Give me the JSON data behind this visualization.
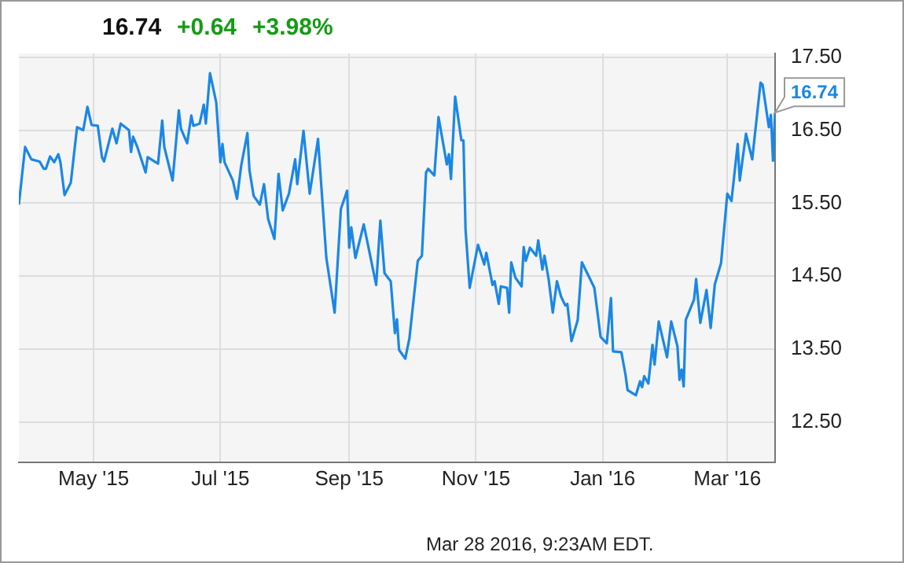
{
  "chart_data": {
    "type": "line",
    "x": [
      "2015-03-26",
      "2015-03-29",
      "2015-04-01",
      "2015-04-05",
      "2015-04-07",
      "2015-04-08",
      "2015-04-10",
      "2015-04-12",
      "2015-04-14",
      "2015-04-15",
      "2015-04-17",
      "2015-04-20",
      "2015-04-23",
      "2015-04-26",
      "2015-04-28",
      "2015-04-30",
      "2015-05-03",
      "2015-05-05",
      "2015-05-06",
      "2015-05-10",
      "2015-05-12",
      "2015-05-14",
      "2015-05-18",
      "2015-05-19",
      "2015-05-20",
      "2015-05-22",
      "2015-05-26",
      "2015-05-27",
      "2015-06-01",
      "2015-06-03",
      "2015-06-04",
      "2015-06-08",
      "2015-06-11",
      "2015-06-12",
      "2015-06-15",
      "2015-06-17",
      "2015-06-18",
      "2015-06-21",
      "2015-06-23",
      "2015-06-24",
      "2015-06-26",
      "2015-06-29",
      "2015-07-01",
      "2015-07-02",
      "2015-07-03",
      "2015-07-07",
      "2015-07-09",
      "2015-07-11",
      "2015-07-14",
      "2015-07-15",
      "2015-07-17",
      "2015-07-20",
      "2015-07-22",
      "2015-07-24",
      "2015-07-27",
      "2015-07-29",
      "2015-07-31",
      "2015-08-03",
      "2015-08-06",
      "2015-08-07",
      "2015-08-10",
      "2015-08-13",
      "2015-08-17",
      "2015-08-21",
      "2015-08-25",
      "2015-08-28",
      "2015-08-31",
      "2015-09-01",
      "2015-09-02",
      "2015-09-04",
      "2015-09-08",
      "2015-09-14",
      "2015-09-16",
      "2015-09-18",
      "2015-09-21",
      "2015-09-23",
      "2015-09-24",
      "2015-09-25",
      "2015-09-28",
      "2015-09-30",
      "2015-10-04",
      "2015-10-06",
      "2015-10-08",
      "2015-10-09",
      "2015-10-12",
      "2015-10-14",
      "2015-10-18",
      "2015-10-19",
      "2015-10-20",
      "2015-10-22",
      "2015-10-25",
      "2015-10-26",
      "2015-10-27",
      "2015-10-29",
      "2015-11-02",
      "2015-11-05",
      "2015-11-06",
      "2015-11-09",
      "2015-11-10",
      "2015-11-12",
      "2015-11-13",
      "2015-11-16",
      "2015-11-17",
      "2015-11-18",
      "2015-11-20",
      "2015-11-23",
      "2015-11-24",
      "2015-11-25",
      "2015-11-27",
      "2015-11-30",
      "2015-12-01",
      "2015-12-03",
      "2015-12-04",
      "2015-12-06",
      "2015-12-08",
      "2015-12-10",
      "2015-12-12",
      "2015-12-14",
      "2015-12-15",
      "2015-12-17",
      "2015-12-20",
      "2015-12-22",
      "2015-12-28",
      "2015-12-31",
      "2016-01-03",
      "2016-01-05",
      "2016-01-06",
      "2016-01-10",
      "2016-01-12",
      "2016-01-13",
      "2016-01-17",
      "2016-01-19",
      "2016-01-20",
      "2016-01-21",
      "2016-01-23",
      "2016-01-25",
      "2016-01-26",
      "2016-01-28",
      "2016-02-01",
      "2016-02-03",
      "2016-02-06",
      "2016-02-07",
      "2016-02-08",
      "2016-02-09",
      "2016-02-10",
      "2016-02-14",
      "2016-02-15",
      "2016-02-17",
      "2016-02-20",
      "2016-02-22",
      "2016-02-24",
      "2016-02-27",
      "2016-03-01",
      "2016-03-03",
      "2016-03-06",
      "2016-03-07",
      "2016-03-10",
      "2016-03-13",
      "2016-03-17",
      "2016-03-18",
      "2016-03-21",
      "2016-03-22",
      "2016-03-23",
      "2016-03-24"
    ],
    "values": [
      15.48,
      16.27,
      16.1,
      16.07,
      15.97,
      15.97,
      16.14,
      16.06,
      16.17,
      16.06,
      15.61,
      15.78,
      16.54,
      16.5,
      16.82,
      16.57,
      16.56,
      16.13,
      16.07,
      16.52,
      16.32,
      16.59,
      16.5,
      16.2,
      16.41,
      16.27,
      15.92,
      16.13,
      16.04,
      16.63,
      16.27,
      15.81,
      16.77,
      16.52,
      16.32,
      16.7,
      16.56,
      16.59,
      16.85,
      16.59,
      17.28,
      16.88,
      16.06,
      16.31,
      16.06,
      15.81,
      15.56,
      16.01,
      16.46,
      15.95,
      15.6,
      15.48,
      15.76,
      15.28,
      15.01,
      15.9,
      15.4,
      15.63,
      16.1,
      15.76,
      16.49,
      15.63,
      16.38,
      14.75,
      14.0,
      15.42,
      15.67,
      14.89,
      15.17,
      14.75,
      15.21,
      14.38,
      15.26,
      14.54,
      14.43,
      13.72,
      13.91,
      13.49,
      13.37,
      13.65,
      14.71,
      14.78,
      15.92,
      15.97,
      15.88,
      16.68,
      16.03,
      16.17,
      15.83,
      16.96,
      16.36,
      16.36,
      15.14,
      14.34,
      14.93,
      14.66,
      14.82,
      14.38,
      14.43,
      14.12,
      14.36,
      14.34,
      14.0,
      14.69,
      14.48,
      14.36,
      14.9,
      14.71,
      14.89,
      14.78,
      14.99,
      14.59,
      14.78,
      14.46,
      14.0,
      14.43,
      14.22,
      14.1,
      14.12,
      13.61,
      13.9,
      14.69,
      14.34,
      13.67,
      13.58,
      14.2,
      13.47,
      13.46,
      13.15,
      12.94,
      12.87,
      13.06,
      12.98,
      13.13,
      13.03,
      13.56,
      13.29,
      13.88,
      13.39,
      13.88,
      13.54,
      13.08,
      13.22,
      12.99,
      13.9,
      14.18,
      14.46,
      13.86,
      14.31,
      13.79,
      14.39,
      14.68,
      15.63,
      15.53,
      16.31,
      15.81,
      16.45,
      16.1,
      17.15,
      17.12,
      16.54,
      16.71,
      16.08,
      16.74
    ],
    "color": "#1a87e6",
    "xlim": [
      "2015-03-26",
      "2016-03-24"
    ],
    "xticks": [
      {
        "value": "2015-05-01",
        "label": "May '15"
      },
      {
        "value": "2015-07-01",
        "label": "Jul '15"
      },
      {
        "value": "2015-09-01",
        "label": "Sep '15"
      },
      {
        "value": "2015-11-01",
        "label": "Nov '15"
      },
      {
        "value": "2016-01-01",
        "label": "Jan '16"
      },
      {
        "value": "2016-03-01",
        "label": "Mar '16"
      }
    ],
    "ylim": [
      11.95,
      17.55
    ],
    "yticks": [
      {
        "value": 12.5,
        "label": "12.50"
      },
      {
        "value": 13.5,
        "label": "13.50"
      },
      {
        "value": 14.5,
        "label": "14.50"
      },
      {
        "value": 15.5,
        "label": "15.50"
      },
      {
        "value": 16.5,
        "label": "16.50"
      },
      {
        "value": 17.5,
        "label": "17.50"
      }
    ],
    "grid": true,
    "legend": false,
    "marker": "none",
    "line_style": "solid",
    "annotations": [
      "16.74",
      "+0.64",
      "+3.98%",
      "Mar 28 2016, 9:23AM EDT.",
      {
        "text": "16.74",
        "x": "2016-03-24",
        "y": 16.74
      }
    ]
  }
}
